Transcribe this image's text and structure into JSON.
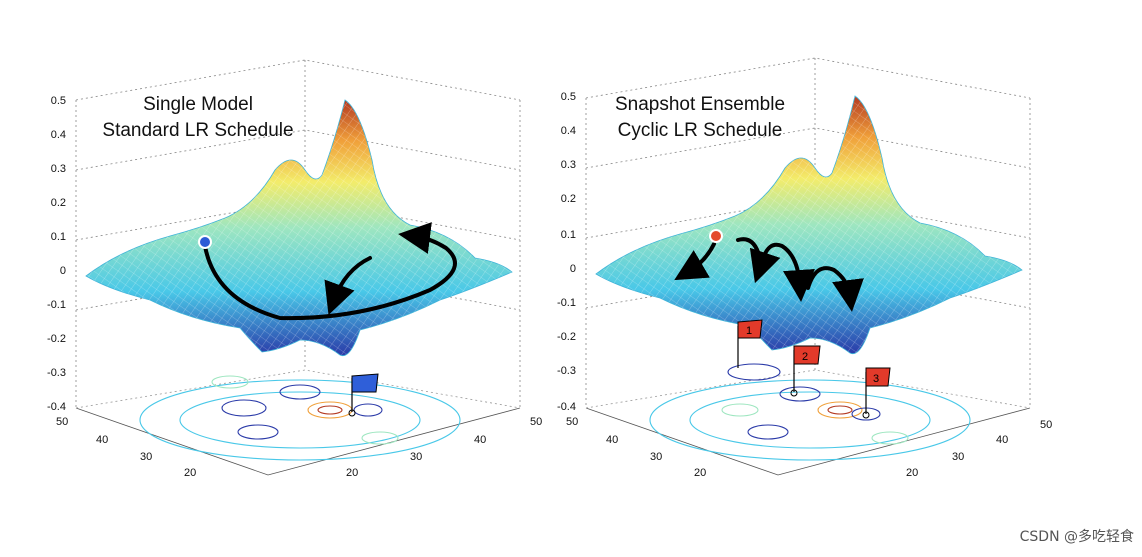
{
  "colors": {
    "low": "#2a3aa8",
    "mid": "#49c8e8",
    "high": "#b33a22",
    "flag_blue": "#2f5fd9",
    "flag_red": "#e23a2a",
    "start_blue": "#2d5bd6",
    "start_red": "#e44a2c"
  },
  "panels": [
    {
      "title_line1": "Single Model",
      "title_line2": "Standard LR Schedule",
      "z_ticks": [
        "0.5",
        "0.4",
        "0.3",
        "0.2",
        "0.1",
        "0",
        "-0.1",
        "-0.2",
        "-0.3",
        "-0.4"
      ],
      "left_ticks": [
        "50",
        "40",
        "30",
        "20"
      ],
      "right_ticks": [
        "20",
        "30",
        "40",
        "50"
      ],
      "flags": []
    },
    {
      "title_line1": "Snapshot Ensemble",
      "title_line2": "Cyclic LR Schedule",
      "z_ticks": [
        "0.5",
        "0.4",
        "0.3",
        "0.2",
        "0.1",
        "0",
        "-0.1",
        "-0.2",
        "-0.3",
        "-0.4"
      ],
      "left_ticks": [
        "50",
        "40",
        "30",
        "20"
      ],
      "right_ticks": [
        "20",
        "30",
        "40",
        "50"
      ],
      "flags": [
        "1",
        "2",
        "3"
      ]
    }
  ],
  "watermark": "CSDN @多吃轻食"
}
